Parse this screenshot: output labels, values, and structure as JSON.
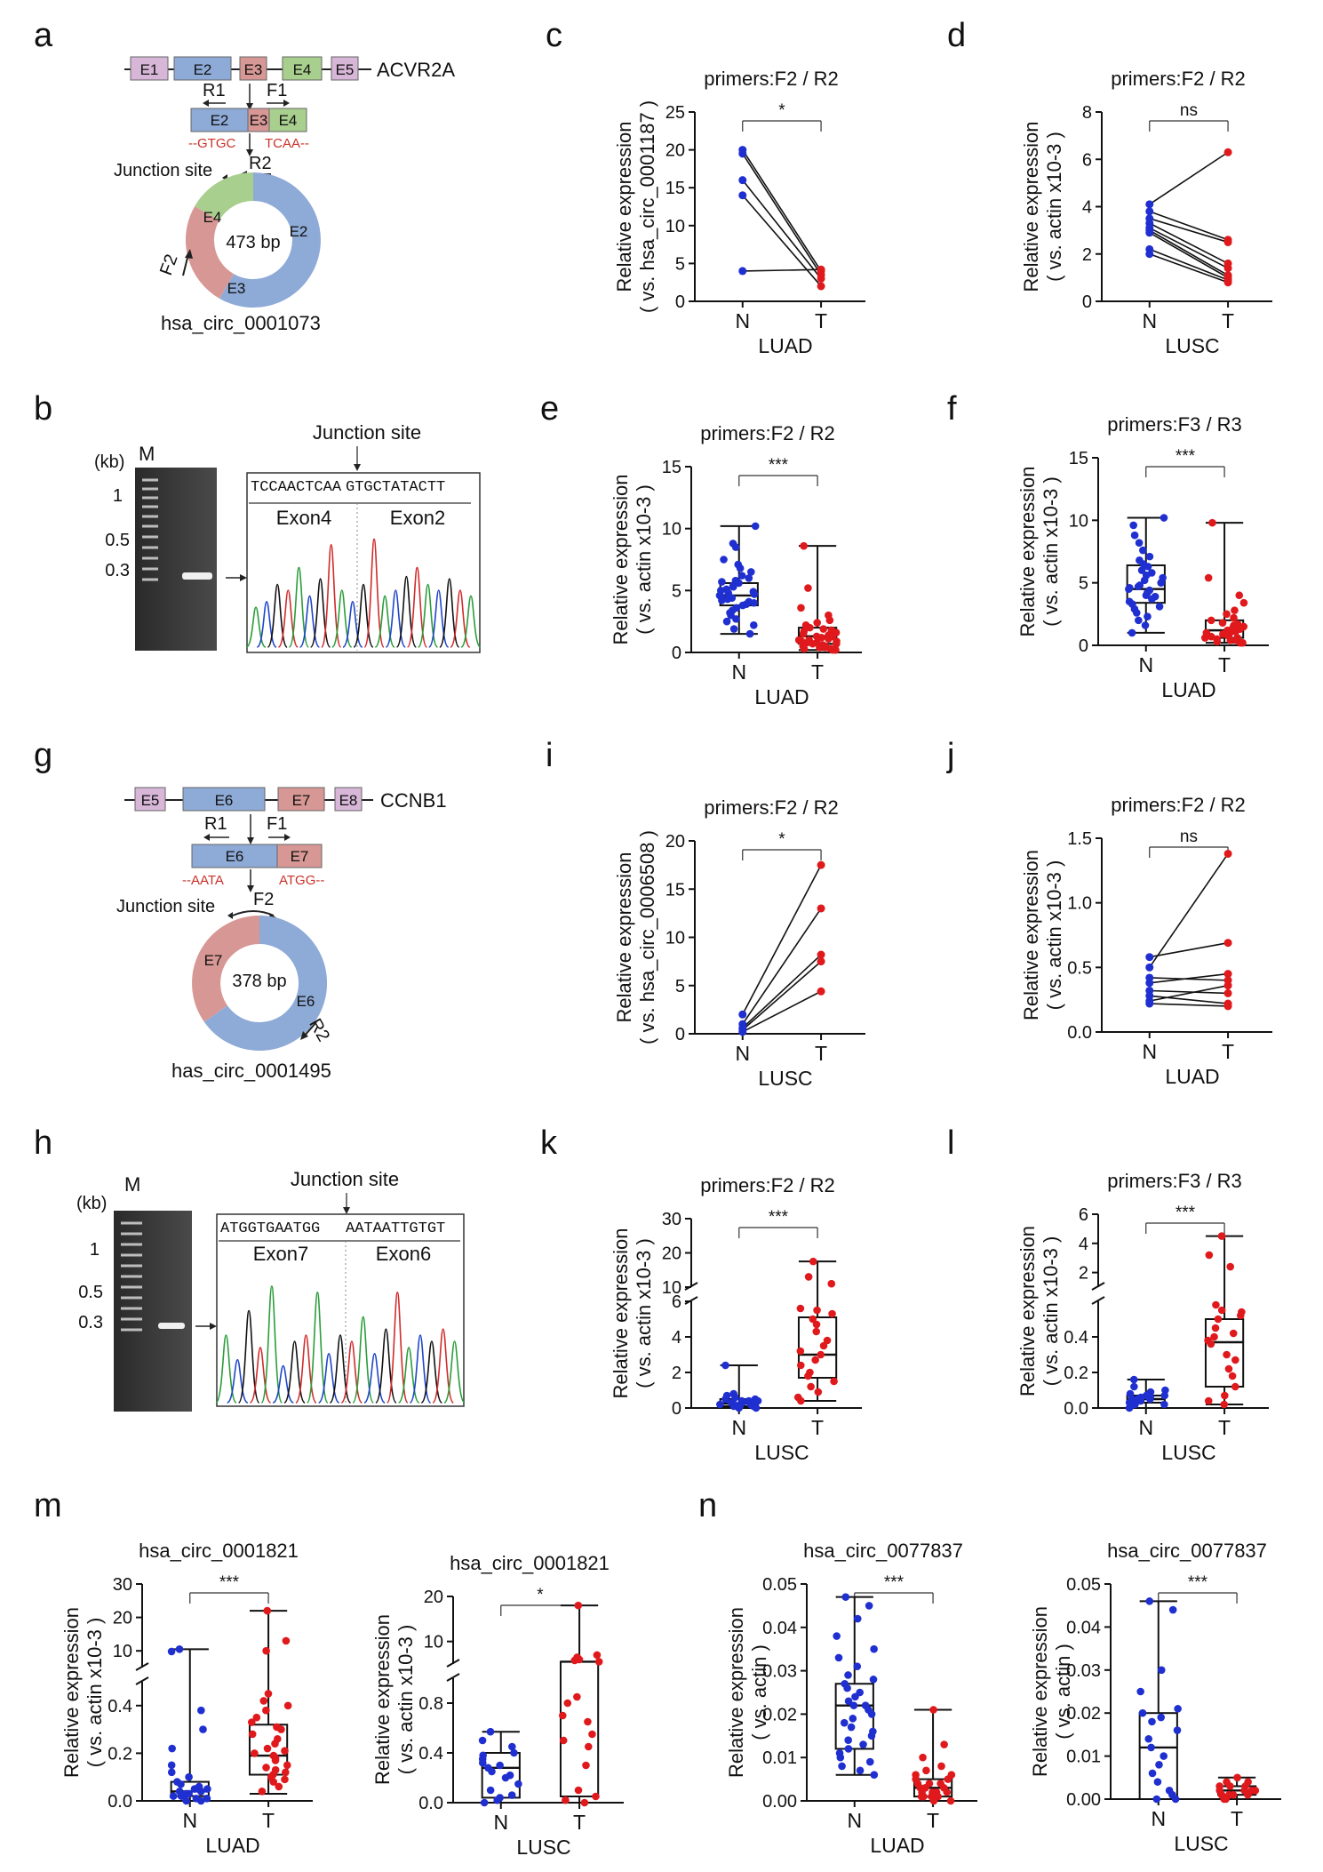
{
  "panels": {
    "a": {
      "letter": "a",
      "gene": "ACVR2A",
      "exons": [
        "E1",
        "E2",
        "E3",
        "E4",
        "E5"
      ],
      "primer_r1": "R1",
      "primer_f1": "F1",
      "linear": [
        "E2",
        "E3",
        "E4"
      ],
      "junction_left": "--GTGC",
      "junction_right": "TCAA--",
      "primer_r2": "R2",
      "junction_label": "Junction site",
      "circ_size": "473 bp",
      "circ_exons": [
        "E2",
        "E3",
        "E4"
      ],
      "primer_f2": "F2",
      "circ_name": "hsa_circ_0001073"
    },
    "b": {
      "letter": "b",
      "kb": "(kb)",
      "marker": "M",
      "ladder": [
        "1",
        "0.5",
        "0.3"
      ],
      "junction_label": "Junction site",
      "sequence_left": "TCCAACTCAA",
      "sequence_right": "GTGCTATACTT",
      "exon_left": "Exon4",
      "exon_right": "Exon2"
    },
    "g": {
      "letter": "g",
      "gene": "CCNB1",
      "exons": [
        "E5",
        "E6",
        "E7",
        "E8"
      ],
      "primer_r1": "R1",
      "primer_f1": "F1",
      "linear": [
        "E6",
        "E7"
      ],
      "junction_left": "--AATA",
      "junction_right": "ATGG--",
      "primer_f2": "F2",
      "junction_label": "Junction site",
      "circ_size": "378 bp",
      "circ_exons": [
        "E7",
        "E6"
      ],
      "primer_r2": "R2",
      "circ_name": "has_circ_0001495"
    },
    "h": {
      "letter": "h",
      "kb": "(kb)",
      "marker": "M",
      "ladder": [
        "1",
        "0.5",
        "0.3"
      ],
      "junction_label": "Junction site",
      "sequence_left": "ATGGTGAATGG",
      "sequence_right": "AATAATTGTGT",
      "exon_left": "Exon7",
      "exon_right": "Exon6"
    },
    "m": {
      "letter": "m"
    },
    "n": {
      "letter": "n"
    }
  },
  "colors": {
    "normal": "#1f2fd0",
    "tumor": "#e0191c",
    "e_purple": "#d7b6d8",
    "e_blue": "#8eaad6",
    "e_red": "#d79895",
    "e_green": "#a9cf8e",
    "primer_red": "#c8322a"
  },
  "chart_data": [
    {
      "id": "c",
      "type": "paired-line",
      "title": "primers:F2 / R2",
      "ylabel": [
        "Relative expression",
        "( vs. hsa_circ_0001187 )"
      ],
      "xlabel": "LUAD",
      "categories": [
        "N",
        "T"
      ],
      "ylim": [
        0,
        25
      ],
      "yticks": [
        0,
        5,
        10,
        15,
        20,
        25
      ],
      "significance": "*",
      "pairs": [
        [
          20,
          4
        ],
        [
          19.5,
          3.5
        ],
        [
          16,
          3
        ],
        [
          14,
          2
        ],
        [
          4,
          4.2
        ]
      ]
    },
    {
      "id": "d",
      "type": "paired-line",
      "title": "primers:F2 / R2",
      "ylabel": [
        "Relative expression",
        "( vs. actin  x10-3 )"
      ],
      "xlabel": "LUSC",
      "categories": [
        "N",
        "T"
      ],
      "ylim": [
        0,
        8
      ],
      "yticks": [
        0,
        2,
        4,
        6,
        8
      ],
      "significance": "ns",
      "pairs": [
        [
          4.1,
          6.3
        ],
        [
          3.8,
          2.6
        ],
        [
          3.5,
          2.5
        ],
        [
          3.3,
          1.6
        ],
        [
          3.1,
          1.4
        ],
        [
          3.0,
          1.1
        ],
        [
          2.9,
          1.0
        ],
        [
          2.2,
          0.9
        ],
        [
          2.0,
          0.8
        ]
      ]
    },
    {
      "id": "e",
      "type": "box",
      "title": "primers:F2 / R2",
      "ylabel": [
        "Relative expression",
        "( vs. actin  x10-3 )"
      ],
      "xlabel": "LUAD",
      "categories": [
        "N",
        "T"
      ],
      "ylim": [
        0,
        15
      ],
      "yticks": [
        0,
        5,
        10,
        15
      ],
      "significance": "***",
      "boxes": [
        {
          "min": 1.5,
          "q1": 3.8,
          "median": 4.6,
          "q3": 5.6,
          "max": 10.2
        },
        {
          "min": 0.2,
          "q1": 0.7,
          "median": 1.3,
          "q3": 2.0,
          "max": 8.6
        }
      ],
      "points": [
        [
          10.2,
          8.8,
          8.5,
          7.5,
          7.1,
          6.8,
          6.5,
          6.2,
          6.0,
          5.8,
          5.7,
          5.6,
          5.4,
          5.3,
          5.1,
          5.0,
          4.9,
          4.8,
          4.7,
          4.6,
          4.5,
          4.4,
          4.3,
          4.2,
          4.1,
          4.0,
          3.9,
          3.8,
          3.6,
          3.4,
          3.2,
          3.0,
          2.7,
          2.5,
          2.2,
          1.9,
          1.5
        ],
        [
          8.6,
          5.2,
          3.6,
          3.0,
          2.6,
          2.4,
          2.2,
          2.0,
          1.9,
          1.8,
          1.7,
          1.6,
          1.5,
          1.4,
          1.3,
          1.3,
          1.2,
          1.1,
          1.0,
          1.0,
          0.9,
          0.9,
          0.8,
          0.8,
          0.7,
          0.7,
          0.6,
          0.5,
          0.5,
          0.4,
          0.4,
          0.3,
          0.3,
          0.2,
          0.2
        ]
      ]
    },
    {
      "id": "f",
      "type": "box",
      "title": "primers:F3 / R3",
      "ylabel": [
        "Relative expression",
        "( vs. actin  x10-3 )"
      ],
      "xlabel": "LUAD",
      "categories": [
        "N",
        "T"
      ],
      "ylim": [
        0,
        15
      ],
      "yticks": [
        0,
        5,
        10,
        15
      ],
      "significance": "***",
      "boxes": [
        {
          "min": 1.0,
          "q1": 3.4,
          "median": 4.5,
          "q3": 6.4,
          "max": 10.2
        },
        {
          "min": 0.2,
          "q1": 0.6,
          "median": 1.2,
          "q3": 2.0,
          "max": 9.8
        }
      ],
      "points": [
        [
          10.2,
          9.6,
          8.8,
          8.2,
          7.6,
          7.1,
          6.8,
          6.5,
          6.3,
          6.0,
          5.8,
          5.6,
          5.4,
          5.2,
          5.0,
          4.8,
          4.7,
          4.6,
          4.5,
          4.4,
          4.2,
          4.0,
          3.9,
          3.7,
          3.5,
          3.3,
          3.1,
          2.9,
          2.6,
          2.3,
          2.0,
          1.6,
          1.0
        ],
        [
          9.8,
          5.4,
          4.0,
          3.4,
          2.8,
          2.5,
          2.2,
          2.0,
          1.8,
          1.7,
          1.6,
          1.5,
          1.4,
          1.3,
          1.2,
          1.1,
          1.0,
          1.0,
          0.9,
          0.8,
          0.8,
          0.7,
          0.6,
          0.6,
          0.5,
          0.4,
          0.4,
          0.3,
          0.2,
          0.2
        ]
      ]
    },
    {
      "id": "i",
      "type": "paired-line",
      "title": "primers:F2 / R2",
      "ylabel": [
        "Relative expression",
        "( vs. hsa_circ_0006508 )"
      ],
      "xlabel": "LUSC",
      "categories": [
        "N",
        "T"
      ],
      "ylim": [
        0,
        20
      ],
      "yticks": [
        0,
        5,
        10,
        15,
        20
      ],
      "significance": "*",
      "pairs": [
        [
          2.0,
          17.5
        ],
        [
          1.0,
          13.0
        ],
        [
          0.6,
          8.2
        ],
        [
          0.4,
          7.5
        ],
        [
          0.2,
          4.4
        ]
      ]
    },
    {
      "id": "j",
      "type": "paired-line",
      "title": "primers:F2 / R2",
      "ylabel": [
        "Relative expression",
        "( vs. actin  x10-3 )"
      ],
      "xlabel": "LUAD",
      "categories": [
        "N",
        "T"
      ],
      "ylim": [
        0,
        1.5
      ],
      "yticks": [
        "0.0",
        "0.5",
        "1.0",
        "1.5"
      ],
      "significance": "ns",
      "pairs": [
        [
          0.58,
          0.69
        ],
        [
          0.5,
          1.38
        ],
        [
          0.42,
          0.4
        ],
        [
          0.38,
          0.45
        ],
        [
          0.32,
          0.3
        ],
        [
          0.28,
          0.22
        ],
        [
          0.24,
          0.36
        ],
        [
          0.22,
          0.2
        ]
      ]
    },
    {
      "id": "k",
      "type": "box-broken",
      "title": "primers:F2 / R2",
      "ylabel": [
        "Relative expression",
        "( vs. actin  x10-3 )"
      ],
      "xlabel": "LUSC",
      "categories": [
        "N",
        "T"
      ],
      "lower": {
        "ylim": [
          0,
          6
        ],
        "yticks": [
          0,
          2,
          4,
          6
        ]
      },
      "upper": {
        "ylim": [
          10,
          30
        ],
        "yticks": [
          10,
          20,
          30
        ]
      },
      "significance": "***",
      "boxes": [
        {
          "min": 0.0,
          "q1": 0.1,
          "median": 0.25,
          "q3": 0.5,
          "max": 2.4
        },
        {
          "min": 0.4,
          "q1": 1.7,
          "median": 3.0,
          "q3": 5.1,
          "max": 17.5
        }
      ],
      "points": [
        [
          2.4,
          0.8,
          0.7,
          0.6,
          0.5,
          0.5,
          0.4,
          0.4,
          0.4,
          0.3,
          0.3,
          0.3,
          0.2,
          0.2,
          0.2,
          0.1,
          0.1,
          0.1,
          0.0,
          0.0
        ],
        [
          17.5,
          13,
          11,
          5.6,
          5.5,
          5.3,
          5.0,
          4.7,
          4.3,
          3.8,
          3.5,
          3.2,
          3.0,
          2.7,
          2.4,
          2.0,
          1.8,
          1.5,
          1.2,
          0.9,
          0.6,
          0.4
        ]
      ]
    },
    {
      "id": "l",
      "type": "box-broken",
      "title": "primers:F3 / R3",
      "ylabel": [
        "Relative expression",
        "( vs. actin  x10-3 )"
      ],
      "xlabel": "LUSC",
      "categories": [
        "N",
        "T"
      ],
      "lower": {
        "ylim": [
          0,
          0.6
        ],
        "yticks": [
          "0.0",
          "0.2",
          "0.4"
        ]
      },
      "upper": {
        "ylim": [
          1,
          6
        ],
        "yticks": [
          2,
          4,
          6
        ]
      },
      "significance": "***",
      "boxes": [
        {
          "min": 0.0,
          "q1": 0.03,
          "median": 0.05,
          "q3": 0.07,
          "max": 0.16
        },
        {
          "min": 0.02,
          "q1": 0.12,
          "median": 0.37,
          "q3": 0.5,
          "max": 4.5
        }
      ],
      "points": [
        [
          0.16,
          0.12,
          0.1,
          0.09,
          0.08,
          0.07,
          0.07,
          0.06,
          0.06,
          0.05,
          0.05,
          0.05,
          0.04,
          0.04,
          0.03,
          0.03,
          0.02,
          0.02,
          0.01,
          0.0
        ],
        [
          4.5,
          3.2,
          2.4,
          0.58,
          0.55,
          0.54,
          0.52,
          0.5,
          0.45,
          0.42,
          0.4,
          0.38,
          0.36,
          0.3,
          0.27,
          0.22,
          0.18,
          0.12,
          0.07,
          0.04,
          0.02
        ]
      ]
    },
    {
      "id": "m1",
      "type": "box-broken",
      "title": "hsa_circ_0001821",
      "ylabel": [
        "Relative expression",
        "( vs. actin  x10-3 )"
      ],
      "xlabel": "LUAD",
      "categories": [
        "N",
        "T"
      ],
      "lower": {
        "ylim": [
          0,
          0.5
        ],
        "yticks": [
          "0.0",
          "0.2",
          "0.4"
        ]
      },
      "upper": {
        "ylim": [
          5,
          30
        ],
        "yticks": [
          10,
          20,
          30
        ]
      },
      "significance": "***",
      "boxes": [
        {
          "min": 0.0,
          "q1": 0.02,
          "median": 0.04,
          "q3": 0.08,
          "max": 10.5
        },
        {
          "min": 0.03,
          "q1": 0.11,
          "median": 0.19,
          "q3": 0.32,
          "max": 22
        }
      ],
      "points": [
        [
          10.5,
          9.8,
          0.38,
          0.3,
          0.22,
          0.15,
          0.12,
          0.1,
          0.08,
          0.07,
          0.06,
          0.05,
          0.05,
          0.04,
          0.04,
          0.03,
          0.03,
          0.02,
          0.02,
          0.01,
          0.01,
          0.0,
          0.0
        ],
        [
          22,
          13,
          10,
          0.45,
          0.42,
          0.4,
          0.38,
          0.35,
          0.33,
          0.31,
          0.3,
          0.28,
          0.26,
          0.24,
          0.22,
          0.21,
          0.2,
          0.19,
          0.18,
          0.17,
          0.15,
          0.14,
          0.13,
          0.12,
          0.11,
          0.1,
          0.09,
          0.08,
          0.06,
          0.04
        ]
      ]
    },
    {
      "id": "m2",
      "type": "box-broken",
      "title": "hsa_circ_0001821",
      "ylabel": [
        "Relative expression",
        "( vs. actin  x10-3 )"
      ],
      "xlabel": "LUSC",
      "categories": [
        "N",
        "T"
      ],
      "lower": {
        "ylim": [
          0,
          1
        ],
        "yticks": [
          "0.0",
          "0.4",
          "0.8"
        ]
      },
      "upper": {
        "ylim": [
          5,
          20
        ],
        "yticks": [
          10,
          20
        ]
      },
      "significance": "*",
      "boxes": [
        {
          "min": 0.0,
          "q1": 0.04,
          "median": 0.28,
          "q3": 0.4,
          "max": 0.57
        },
        {
          "min": 0.0,
          "q1": 0.05,
          "median": 5.5,
          "q3": 5.5,
          "max": 18
        }
      ],
      "points": [
        [
          0.57,
          0.5,
          0.45,
          0.4,
          0.38,
          0.35,
          0.32,
          0.3,
          0.28,
          0.25,
          0.22,
          0.2,
          0.15,
          0.1,
          0.06,
          0.04,
          0.02,
          0.0
        ],
        [
          18,
          7,
          6.5,
          6,
          5.8,
          5.5,
          0.85,
          0.8,
          0.7,
          0.65,
          0.55,
          0.5,
          0.45,
          0.3,
          0.1,
          0.05,
          0.02,
          0.0
        ]
      ]
    },
    {
      "id": "n1",
      "type": "box",
      "title": "hsa_circ_0077837",
      "ylabel": [
        "Relative expression",
        "( vs. actin )"
      ],
      "xlabel": "LUAD",
      "categories": [
        "N",
        "T"
      ],
      "ylim": [
        0,
        0.05
      ],
      "yticks": [
        "0.00",
        "0.01",
        "0.02",
        "0.03",
        "0.04",
        "0.05"
      ],
      "significance": "***",
      "boxes": [
        {
          "min": 0.006,
          "q1": 0.012,
          "median": 0.022,
          "q3": 0.027,
          "max": 0.047
        },
        {
          "min": 0.0,
          "q1": 0.001,
          "median": 0.003,
          "q3": 0.005,
          "max": 0.021
        }
      ],
      "points": [
        [
          0.047,
          0.045,
          0.042,
          0.038,
          0.035,
          0.033,
          0.031,
          0.029,
          0.028,
          0.027,
          0.026,
          0.025,
          0.024,
          0.023,
          0.022,
          0.022,
          0.021,
          0.02,
          0.019,
          0.018,
          0.017,
          0.016,
          0.015,
          0.014,
          0.013,
          0.012,
          0.011,
          0.01,
          0.009,
          0.008,
          0.007,
          0.006
        ],
        [
          0.021,
          0.013,
          0.01,
          0.008,
          0.007,
          0.006,
          0.006,
          0.005,
          0.005,
          0.004,
          0.004,
          0.004,
          0.003,
          0.003,
          0.003,
          0.002,
          0.002,
          0.002,
          0.002,
          0.001,
          0.001,
          0.001,
          0.001,
          0.0,
          0.0
        ]
      ]
    },
    {
      "id": "n2",
      "type": "box",
      "title": "hsa_circ_0077837",
      "ylabel": [
        "Relative expression",
        "( vs. actin )"
      ],
      "xlabel": "LUSC",
      "categories": [
        "N",
        "T"
      ],
      "ylim": [
        0,
        0.05
      ],
      "yticks": [
        "0.00",
        "0.01",
        "0.02",
        "0.03",
        "0.04",
        "0.05"
      ],
      "significance": "***",
      "boxes": [
        {
          "min": 0.0,
          "q1": 0.0,
          "median": 0.012,
          "q3": 0.02,
          "max": 0.046
        },
        {
          "min": 0.0,
          "q1": 0.001,
          "median": 0.002,
          "q3": 0.003,
          "max": 0.005
        }
      ],
      "points": [
        [
          0.046,
          0.044,
          0.03,
          0.025,
          0.021,
          0.02,
          0.019,
          0.018,
          0.016,
          0.014,
          0.012,
          0.01,
          0.008,
          0.006,
          0.004,
          0.002,
          0.001,
          0.0,
          0.0
        ],
        [
          0.005,
          0.004,
          0.004,
          0.003,
          0.003,
          0.003,
          0.002,
          0.002,
          0.002,
          0.002,
          0.001,
          0.001,
          0.001,
          0.001,
          0.0,
          0.0
        ]
      ]
    }
  ]
}
